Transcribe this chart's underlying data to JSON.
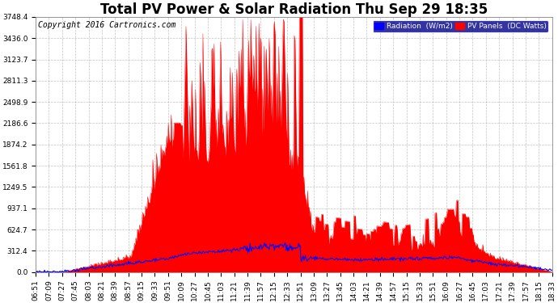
{
  "title": "Total PV Power & Solar Radiation Thu Sep 29 18:35",
  "copyright": "Copyright 2016 Cartronics.com",
  "legend_radiation": "Radiation  (W/m2)",
  "legend_pv": "PV Panels  (DC Watts)",
  "background_color": "#ffffff",
  "plot_bg_color": "#ffffff",
  "grid_color": "#aaaaaa",
  "pv_color": "#ff0000",
  "radiation_color": "#0000ff",
  "ylim": [
    0,
    3748.4
  ],
  "yticks": [
    0.0,
    312.4,
    624.7,
    937.1,
    1249.5,
    1561.8,
    1874.2,
    2186.6,
    2498.9,
    2811.3,
    3123.7,
    3436.0,
    3748.4
  ],
  "x_tick_labels": [
    "06:51",
    "07:09",
    "07:27",
    "07:45",
    "08:03",
    "08:21",
    "08:39",
    "08:57",
    "09:15",
    "09:33",
    "09:51",
    "10:09",
    "10:27",
    "10:45",
    "11:03",
    "11:21",
    "11:39",
    "11:57",
    "12:15",
    "12:33",
    "12:51",
    "13:09",
    "13:27",
    "13:45",
    "14:03",
    "14:21",
    "14:39",
    "14:57",
    "15:15",
    "15:33",
    "15:51",
    "16:09",
    "16:27",
    "16:45",
    "17:03",
    "17:21",
    "17:39",
    "17:57",
    "18:15",
    "18:33"
  ],
  "title_fontsize": 12,
  "tick_fontsize": 6.5,
  "copyright_fontsize": 7
}
